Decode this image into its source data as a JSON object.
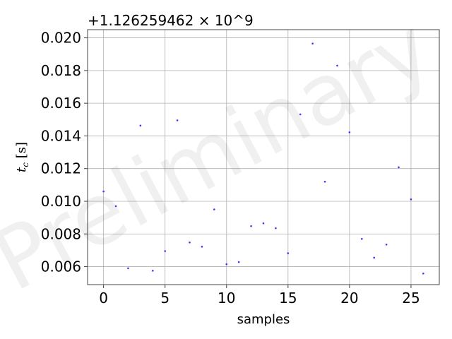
{
  "chart_data": {
    "type": "scatter",
    "xlabel": "samples",
    "ylabel": "t_c [s]",
    "offset_text": "+1.126259462 × 10^9",
    "watermark": "Preliminary",
    "grid": true,
    "point_color": "#3b3bff",
    "xlim": [
      -1.3,
      27.3
    ],
    "ylim": [
      0.0049,
      0.0205
    ],
    "xticks": [
      0,
      5,
      10,
      15,
      20,
      25
    ],
    "xtick_labels": [
      "0",
      "5",
      "10",
      "15",
      "20",
      "25"
    ],
    "yticks": [
      0.006,
      0.008,
      0.01,
      0.012,
      0.014,
      0.016,
      0.018,
      0.02
    ],
    "ytick_labels": [
      "0.006",
      "0.008",
      "0.010",
      "0.012",
      "0.014",
      "0.016",
      "0.018",
      "0.020"
    ],
    "x": [
      0,
      1,
      2,
      3,
      4,
      5,
      6,
      7,
      8,
      9,
      10,
      11,
      12,
      13,
      14,
      15,
      16,
      17,
      18,
      19,
      20,
      21,
      22,
      23,
      24,
      25,
      26
    ],
    "y": [
      0.0106,
      0.0097,
      0.0059,
      0.01463,
      0.00575,
      0.00695,
      0.01495,
      0.00748,
      0.00722,
      0.0095,
      0.00615,
      0.00628,
      0.00848,
      0.00865,
      0.00835,
      0.00682,
      0.01532,
      0.01965,
      0.0112,
      0.0183,
      0.01422,
      0.0077,
      0.00655,
      0.00735,
      0.01208,
      0.01012,
      0.00558
    ]
  }
}
